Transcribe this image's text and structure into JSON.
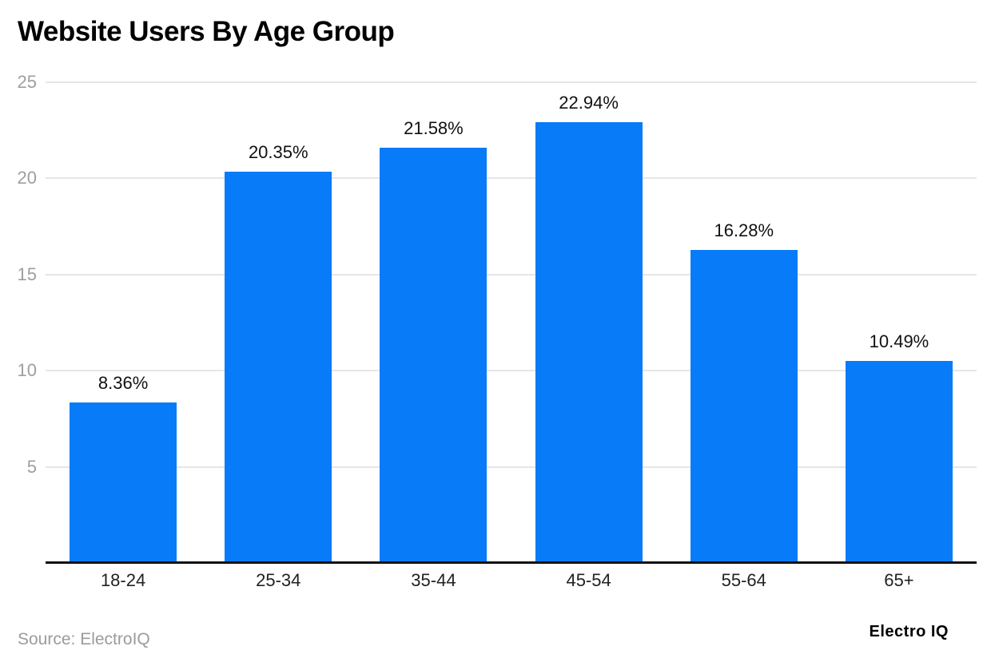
{
  "page": {
    "title": "Website Users By Age Group",
    "source": "Source: ElectroIQ",
    "brand": "Electro IQ"
  },
  "chart_data": {
    "type": "bar",
    "title": "Website Users By Age Group",
    "categories": [
      "18-24",
      "25-34",
      "35-44",
      "45-54",
      "55-64",
      "65+"
    ],
    "values": [
      8.36,
      20.35,
      21.58,
      22.94,
      16.28,
      10.49
    ],
    "value_labels": [
      "8.36%",
      "20.35%",
      "21.58%",
      "22.94%",
      "16.28%",
      "10.49%"
    ],
    "xlabel": "",
    "ylabel": "",
    "ylim": [
      0,
      25
    ],
    "yticks": [
      5,
      10,
      15,
      20,
      25
    ],
    "grid": true,
    "legend": "none",
    "bar_color": "#077bf8",
    "gridline_color": "#e6e6e6",
    "axis_line_color": "#111111",
    "ytick_color": "#9e9e9e",
    "source_text": "Source: ElectroIQ",
    "brand_text": "Electro IQ"
  }
}
